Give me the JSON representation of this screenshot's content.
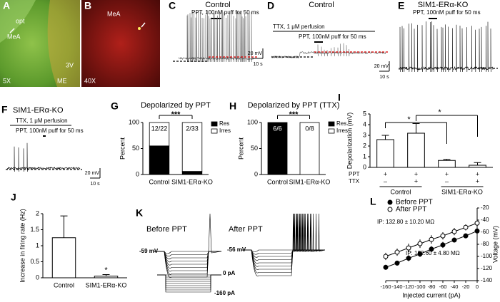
{
  "panels": {
    "A": {
      "label": "A",
      "texts": [
        "opt",
        "MeA",
        "3V",
        "ME",
        "5X"
      ]
    },
    "B": {
      "label": "B",
      "texts": [
        "MeA",
        "40X"
      ]
    },
    "C": {
      "label": "C",
      "title": "Control",
      "stimulus": "PPT, 100nM puff for 50 ms",
      "scale_y": "20 mV",
      "scale_x": "10 s"
    },
    "D": {
      "label": "D",
      "title": "Control",
      "perfusion": "TTX, 1 μM perfusion",
      "stimulus": "PPT, 100nM puff for 50 ms",
      "scale_y": "20 mV",
      "scale_x": "10 s"
    },
    "E": {
      "label": "E",
      "title": "SIM1-ERα-KO",
      "stimulus": "PPT, 100nM puff for 50 ms"
    },
    "F": {
      "label": "F",
      "title": "SIM1-ERα-KO",
      "perfusion": "TTX, 1 μM perfusion",
      "stimulus": "PPT, 100nM puff for 50 ms",
      "scale_y": "20 mV",
      "scale_x": "10 s"
    },
    "K": {
      "label": "K",
      "before": "Before PPT",
      "after": "After PPT",
      "rest_before": "-59 mV",
      "rest_after": "-56 mV",
      "current_top": "0 pA",
      "current_bottom": "-160 pA"
    }
  },
  "chart_data": [
    {
      "label": "G",
      "type": "bar",
      "stacked": true,
      "title": "Depolarized by PPT",
      "ylabel": "Percent",
      "categories": [
        "Control",
        "SIM1-ERα-KO"
      ],
      "series": [
        {
          "name": "Res",
          "color": "#000000",
          "values": [
            55,
            6
          ]
        },
        {
          "name": "Irres",
          "color": "#ffffff",
          "values": [
            45,
            94
          ]
        }
      ],
      "bar_labels": [
        "12/22",
        "2/33"
      ],
      "significance": "***",
      "ylim": [
        0,
        100
      ],
      "yticks": [
        0,
        50,
        100
      ],
      "legend": "right"
    },
    {
      "label": "H",
      "type": "bar",
      "stacked": true,
      "title": "Depolarized by PPT (TTX)",
      "ylabel": "Percent",
      "categories": [
        "Control",
        "SIM1-ERα-KO"
      ],
      "series": [
        {
          "name": "Res",
          "color": "#000000",
          "values": [
            100,
            0
          ]
        },
        {
          "name": "Irres",
          "color": "#ffffff",
          "values": [
            0,
            100
          ]
        }
      ],
      "bar_labels": [
        "6/6",
        "0/8"
      ],
      "significance": "***",
      "ylim": [
        0,
        100
      ],
      "yticks": [
        0,
        50,
        100
      ],
      "legend": "right"
    },
    {
      "label": "I",
      "type": "bar",
      "ylabel": "Depolarization (mV)",
      "values": [
        2.6,
        3.2,
        0.65,
        0.2
      ],
      "errors": [
        0.4,
        0.9,
        0.1,
        0.25
      ],
      "color": "#ffffff",
      "ylim": [
        0,
        5
      ],
      "yticks": [
        0,
        1,
        2,
        3,
        4,
        5
      ],
      "rows": [
        {
          "name": "PPT",
          "values": [
            "+",
            "+",
            "+",
            "+"
          ]
        },
        {
          "name": "TTX",
          "values": [
            "–",
            "+",
            "–",
            "+"
          ]
        }
      ],
      "groups": [
        "Control",
        "SIM1-ERα-KO"
      ],
      "significance": [
        "*",
        "*"
      ]
    },
    {
      "label": "J",
      "type": "bar",
      "ylabel": "Increase in firing rate (Hz)",
      "categories": [
        "Control",
        "SIM1-ERα-KO"
      ],
      "values": [
        1.25,
        0.05
      ],
      "errors": [
        0.68,
        0.05
      ],
      "color": "#ffffff",
      "ylim": [
        0,
        2
      ],
      "yticks": [
        0,
        0.5,
        1,
        1.5,
        2
      ],
      "significance": "*"
    },
    {
      "label": "L",
      "type": "line",
      "xlabel": "Injected current (pA)",
      "ylabel": "Voltage (mV)",
      "x": [
        -160,
        -140,
        -120,
        -100,
        -80,
        -60,
        -40,
        -20,
        0
      ],
      "series": [
        {
          "name": "Before PPT",
          "color": "#000000",
          "marker": "filled",
          "values": [
            -118,
            -111,
            -103,
            -96,
            -88,
            -81,
            -73,
            -66,
            -58
          ],
          "errors": [
            4,
            4,
            5,
            5,
            5,
            5,
            4,
            4,
            4
          ]
        },
        {
          "name": "After PPT",
          "color": "#000000",
          "marker": "open",
          "values": [
            -100,
            -93,
            -86,
            -79,
            -72,
            -66,
            -59,
            -52,
            -45
          ],
          "errors": [
            6,
            6,
            7,
            7,
            7,
            6,
            6,
            5,
            5
          ]
        }
      ],
      "annotations": [
        "IP: 132.80 ± 10.20 MΩ",
        "IP: 152.60 ± 4.80 MΩ"
      ],
      "xlim": [
        -160,
        0
      ],
      "xticks": [
        -160,
        -140,
        -120,
        -100,
        -80,
        -60,
        -40,
        -20,
        0
      ],
      "ylim": [
        -140,
        -20
      ],
      "yticks": [
        -20,
        -40,
        -60,
        -80,
        -100,
        -120,
        -140
      ],
      "legend": "upper left"
    }
  ]
}
